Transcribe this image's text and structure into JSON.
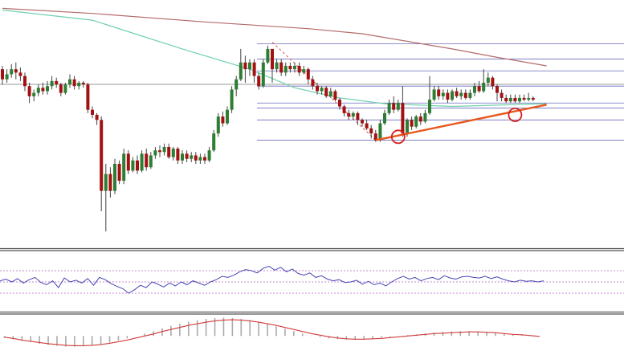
{
  "chart_data": [
    {
      "type": "candlestick",
      "title": "",
      "xlabel": "",
      "ylabel": "",
      "grid": false,
      "colors": {
        "up": "#2e7d32",
        "down": "#a31212",
        "slow_ma": "#b56a6a",
        "fast_ma": "#6fd0b0",
        "fib": "#3a3aa8",
        "trendline": "#e8581c",
        "marker": "#d81f1f"
      },
      "candles": [
        [
          62.0,
          59.0,
          57.5,
          63.0
        ],
        [
          59.0,
          60.5,
          58.0,
          62.0
        ],
        [
          60.5,
          62.0,
          59.5,
          63.5
        ],
        [
          62.0,
          61.0,
          59.0,
          64.0
        ],
        [
          61.0,
          60.0,
          58.5,
          62.5
        ],
        [
          60.0,
          57.0,
          55.5,
          61.0
        ],
        [
          57.0,
          54.0,
          52.0,
          58.0
        ],
        [
          54.0,
          55.0,
          52.5,
          56.0
        ],
        [
          55.0,
          56.5,
          54.0,
          57.5
        ],
        [
          56.5,
          55.5,
          54.5,
          58.0
        ],
        [
          55.5,
          57.0,
          54.5,
          58.5
        ],
        [
          57.0,
          58.5,
          56.0,
          60.0
        ],
        [
          58.5,
          57.5,
          56.5,
          59.5
        ],
        [
          57.5,
          55.0,
          54.0,
          58.0
        ],
        [
          55.0,
          57.5,
          54.5,
          58.0
        ],
        [
          57.5,
          59.0,
          56.5,
          60.5
        ],
        [
          59.0,
          57.0,
          56.0,
          60.0
        ],
        [
          57.0,
          58.0,
          56.0,
          58.5
        ],
        [
          58.0,
          57.5,
          56.5,
          58.5
        ],
        [
          57.5,
          50.0,
          49.0,
          58.0
        ],
        [
          50.0,
          48.5,
          47.5,
          51.0
        ],
        [
          48.5,
          47.0,
          45.5,
          49.0
        ],
        [
          47.0,
          26.0,
          20.0,
          48.0
        ],
        [
          26.0,
          31.0,
          14.0,
          34.0
        ],
        [
          31.0,
          26.0,
          24.0,
          33.0
        ],
        [
          26.0,
          34.0,
          25.0,
          35.5
        ],
        [
          34.0,
          29.0,
          28.0,
          35.0
        ],
        [
          29.0,
          37.0,
          28.0,
          38.5
        ],
        [
          37.0,
          32.0,
          31.0,
          38.0
        ],
        [
          32.0,
          35.0,
          31.5,
          36.0
        ],
        [
          35.0,
          32.0,
          31.0,
          36.5
        ],
        [
          32.0,
          37.0,
          31.5,
          38.0
        ],
        [
          37.0,
          33.0,
          32.0,
          38.5
        ],
        [
          33.0,
          36.5,
          32.5,
          37.5
        ],
        [
          36.5,
          38.0,
          35.5,
          39.0
        ],
        [
          38.0,
          37.5,
          36.0,
          39.5
        ],
        [
          37.5,
          39.0,
          36.5,
          40.0
        ],
        [
          39.0,
          36.0,
          35.5,
          40.0
        ],
        [
          36.0,
          38.5,
          35.0,
          39.0
        ],
        [
          38.5,
          35.0,
          34.0,
          39.0
        ],
        [
          35.0,
          37.0,
          34.0,
          38.0
        ],
        [
          37.0,
          35.5,
          34.5,
          38.0
        ],
        [
          35.5,
          36.5,
          34.5,
          37.5
        ],
        [
          36.5,
          35.0,
          34.0,
          37.5
        ],
        [
          35.0,
          36.0,
          34.0,
          37.0
        ],
        [
          36.0,
          35.0,
          34.0,
          37.0
        ],
        [
          35.0,
          38.0,
          34.5,
          39.0
        ],
        [
          38.0,
          43.0,
          37.5,
          44.0
        ],
        [
          43.0,
          48.0,
          42.0,
          49.0
        ],
        [
          48.0,
          46.0,
          45.0,
          49.5
        ],
        [
          46.0,
          50.0,
          45.5,
          51.0
        ],
        [
          50.0,
          56.0,
          49.0,
          57.0
        ],
        [
          56.0,
          59.0,
          54.0,
          60.0
        ],
        [
          59.0,
          64.0,
          58.5,
          68.0
        ],
        [
          64.0,
          62.0,
          58.0,
          66.0
        ],
        [
          62.0,
          64.0,
          60.0,
          65.0
        ],
        [
          64.0,
          60.0,
          58.0,
          65.0
        ],
        [
          60.0,
          57.0,
          56.0,
          61.0
        ],
        [
          57.0,
          64.0,
          56.5,
          65.0
        ],
        [
          64.0,
          68.0,
          63.5,
          69.0
        ],
        [
          68.0,
          62.0,
          58.0,
          68.0
        ],
        [
          62.0,
          64.0,
          61.0,
          65.0
        ],
        [
          64.0,
          61.0,
          60.0,
          65.0
        ],
        [
          61.0,
          63.0,
          60.0,
          64.0
        ],
        [
          63.0,
          62.0,
          61.0,
          64.0
        ],
        [
          62.0,
          63.0,
          61.0,
          64.0
        ],
        [
          63.0,
          61.0,
          60.0,
          64.0
        ],
        [
          61.0,
          62.0,
          60.5,
          63.0
        ],
        [
          62.0,
          59.0,
          57.5,
          62.5
        ],
        [
          59.0,
          57.0,
          56.0,
          60.0
        ],
        [
          57.0,
          55.5,
          54.5,
          58.0
        ],
        [
          55.5,
          56.5,
          54.5,
          57.0
        ],
        [
          56.5,
          54.0,
          53.5,
          57.0
        ],
        [
          54.0,
          55.5,
          53.5,
          56.5
        ],
        [
          55.5,
          53.0,
          52.5,
          56.0
        ],
        [
          53.0,
          51.0,
          50.0,
          53.5
        ],
        [
          51.0,
          49.0,
          48.0,
          51.5
        ],
        [
          49.0,
          48.0,
          47.0,
          50.0
        ],
        [
          48.0,
          49.0,
          47.0,
          49.5
        ],
        [
          49.0,
          47.0,
          45.5,
          49.5
        ],
        [
          47.0,
          46.0,
          45.0,
          47.5
        ],
        [
          46.0,
          44.5,
          44.0,
          47.0
        ],
        [
          44.5,
          43.0,
          41.5,
          45.5
        ],
        [
          43.0,
          41.0,
          40.5,
          44.0
        ],
        [
          41.0,
          46.0,
          40.5,
          47.0
        ],
        [
          46.0,
          49.0,
          45.5,
          50.0
        ],
        [
          49.0,
          52.0,
          48.5,
          53.0
        ],
        [
          52.0,
          50.0,
          49.0,
          54.0
        ],
        [
          50.0,
          52.0,
          49.5,
          53.0
        ],
        [
          52.0,
          43.0,
          42.0,
          57.0
        ],
        [
          43.0,
          47.0,
          42.0,
          47.5
        ],
        [
          47.0,
          45.0,
          44.0,
          48.0
        ],
        [
          45.0,
          48.0,
          44.5,
          48.5
        ],
        [
          48.0,
          46.5,
          45.5,
          49.0
        ],
        [
          46.5,
          49.0,
          46.0,
          50.0
        ],
        [
          49.0,
          53.0,
          48.5,
          60.0
        ],
        [
          53.0,
          56.0,
          52.5,
          57.0
        ],
        [
          56.0,
          54.0,
          53.0,
          57.0
        ],
        [
          54.0,
          55.0,
          53.0,
          56.0
        ],
        [
          55.0,
          53.0,
          52.0,
          56.0
        ],
        [
          53.0,
          55.5,
          52.5,
          56.0
        ],
        [
          55.5,
          54.0,
          53.5,
          56.5
        ],
        [
          54.0,
          55.0,
          53.0,
          56.0
        ],
        [
          55.0,
          53.5,
          53.0,
          56.0
        ],
        [
          53.5,
          55.0,
          53.0,
          56.0
        ],
        [
          55.0,
          57.0,
          54.0,
          58.0
        ],
        [
          57.0,
          55.5,
          55.0,
          58.5
        ],
        [
          55.5,
          58.0,
          55.0,
          62.0
        ],
        [
          58.0,
          59.5,
          57.0,
          61.0
        ],
        [
          59.5,
          57.0,
          56.0,
          60.0
        ],
        [
          57.0,
          55.0,
          52.5,
          57.5
        ],
        [
          55.0,
          53.5,
          52.5,
          56.0
        ],
        [
          53.5,
          52.5,
          52.0,
          54.5
        ],
        [
          52.5,
          53.5,
          52.0,
          54.5
        ],
        [
          53.5,
          52.5,
          52.0,
          54.5
        ],
        [
          52.5,
          53.5,
          52.0,
          54.5
        ],
        [
          53.5,
          53.0,
          52.5,
          54.5
        ],
        [
          53.0,
          53.5,
          52.5,
          55.0
        ],
        [
          53.5,
          53.0,
          52.5,
          54.0
        ]
      ],
      "ma_slow": [
        [
          0,
          80.0
        ],
        [
          20,
          78.5
        ],
        [
          45,
          76.0
        ],
        [
          68,
          74.0
        ],
        [
          80,
          72.5
        ],
        [
          100,
          68.0
        ],
        [
          110,
          65.5
        ],
        [
          121,
          63.0
        ]
      ],
      "ma_fast": [
        [
          0,
          79.5
        ],
        [
          20,
          76.5
        ],
        [
          40,
          68.0
        ],
        [
          55,
          62.0
        ],
        [
          65,
          56.5
        ],
        [
          75,
          53.5
        ],
        [
          85,
          51.8
        ],
        [
          100,
          51.0
        ],
        [
          121,
          51.8
        ]
      ],
      "fib_levels": [
        69.5,
        65.0,
        61.5,
        57.0,
        52.0,
        50.5,
        47.0,
        41.0
      ],
      "fib_anchor": [
        [
          60,
          70.0
        ],
        [
          83,
          41.0
        ]
      ],
      "trendline": [
        [
          83,
          41.0
        ],
        [
          121,
          51.5
        ]
      ],
      "swing_lows": [
        [
          88,
          42.0
        ],
        [
          114,
          48.5
        ]
      ],
      "ylim": [
        10,
        82
      ]
    },
    {
      "type": "line",
      "title": "",
      "series": [
        {
          "name": "",
          "values": [
            52,
            55,
            50,
            56,
            48,
            54,
            58,
            49,
            45,
            52,
            40,
            57,
            50,
            53,
            48,
            56,
            44,
            58,
            54,
            47,
            42,
            38,
            30,
            36,
            44,
            40,
            50,
            46,
            41,
            48,
            43,
            50,
            45,
            52,
            48,
            44,
            50,
            54,
            60,
            58,
            62,
            68,
            72,
            70,
            66,
            74,
            78,
            71,
            76,
            68,
            73,
            65,
            62,
            66,
            58,
            61,
            55,
            52,
            54,
            49,
            50,
            53,
            46,
            51,
            45,
            48,
            43,
            50,
            56,
            60,
            55,
            58,
            52,
            56,
            58,
            54,
            61,
            57,
            55,
            59,
            60,
            58,
            57,
            60,
            56,
            59,
            55,
            52,
            50,
            53,
            51,
            52,
            50,
            52
          ]
        }
      ],
      "reference_lines": [
        70,
        50,
        30
      ],
      "ylim": [
        0,
        100
      ]
    },
    {
      "type": "bar",
      "title": "",
      "series": [
        {
          "name": "",
          "values": [
            -0.5,
            -0.8,
            -1.2,
            -1.5,
            -1.9,
            -2.2,
            -2.4,
            -2.6,
            -2.6,
            -2.5,
            -2.3,
            -2.0,
            -1.6,
            -1.1,
            -0.6,
            0.0,
            0.6,
            1.2,
            1.9,
            2.5,
            3.0,
            3.5,
            3.9,
            4.2,
            4.4,
            4.5,
            4.4,
            4.2,
            3.9,
            3.5,
            3.0,
            2.4,
            1.8,
            1.2,
            0.6,
            0.1,
            -0.3,
            -0.6,
            -0.8,
            -0.9,
            -0.9,
            -0.8,
            -0.6,
            -0.4,
            -0.2,
            0.0,
            0.2,
            0.4,
            0.6,
            0.8,
            1.0,
            1.1,
            1.2,
            1.2,
            1.1,
            1.0,
            0.8,
            0.6,
            0.4,
            0.2,
            0.0,
            -0.2
          ]
        }
      ],
      "signal_line": [
        -0.3,
        -0.6,
        -1.0,
        -1.3,
        -1.6,
        -1.9,
        -2.1,
        -2.3,
        -2.4,
        -2.4,
        -2.3,
        -2.1,
        -1.8,
        -1.4,
        -1.0,
        -0.5,
        0.0,
        0.5,
        1.1,
        1.6,
        2.1,
        2.6,
        3.0,
        3.4,
        3.7,
        3.9,
        4.0,
        3.9,
        3.7,
        3.4,
        3.0,
        2.6,
        2.1,
        1.6,
        1.1,
        0.6,
        0.2,
        -0.2,
        -0.5,
        -0.7,
        -0.8,
        -0.8,
        -0.7,
        -0.6,
        -0.4,
        -0.2,
        0.0,
        0.2,
        0.4,
        0.6,
        0.7,
        0.8,
        0.9,
        1.0,
        1.0,
        0.9,
        0.8,
        0.6,
        0.4,
        0.3,
        0.1,
        -0.1
      ],
      "ylim": [
        -3.5,
        5
      ]
    }
  ]
}
